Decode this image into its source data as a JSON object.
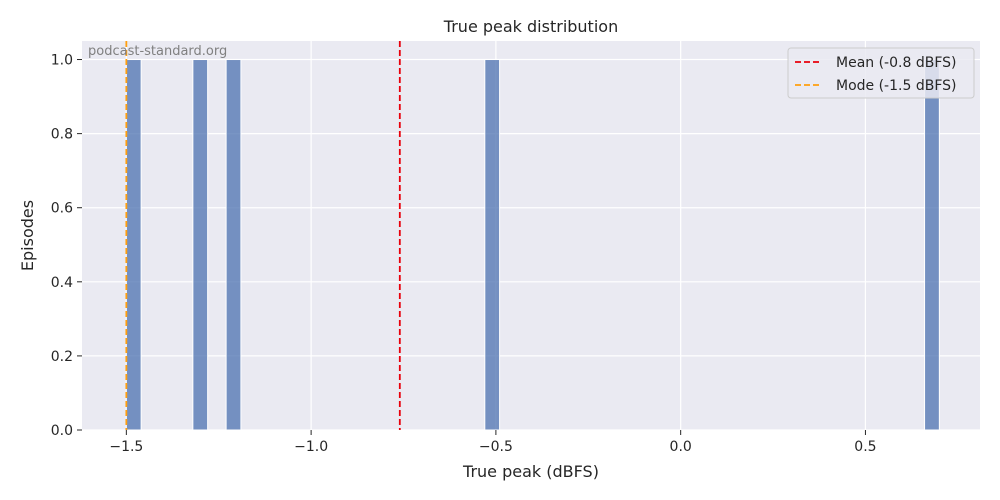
{
  "chart_data": {
    "type": "bar",
    "title": "True peak distribution",
    "xlabel": "True peak (dBFS)",
    "ylabel": "Episodes",
    "watermark": "podcast-standard.org",
    "xlim": [
      -1.62,
      0.81
    ],
    "ylim": [
      0,
      1.05
    ],
    "xticks": [
      -1.5,
      -1.0,
      -0.5,
      0.0,
      0.5
    ],
    "xtick_labels": [
      "−1.5",
      "−1.0",
      "−0.5",
      "0.0",
      "0.5"
    ],
    "yticks": [
      0.0,
      0.2,
      0.4,
      0.6,
      0.8,
      1.0
    ],
    "ytick_labels": [
      "0.0",
      "0.2",
      "0.4",
      "0.6",
      "0.8",
      "1.0"
    ],
    "bin_width": 0.04,
    "bars": [
      {
        "x_start": -1.5,
        "x_end": -1.46,
        "value": 1
      },
      {
        "x_start": -1.32,
        "x_end": -1.28,
        "value": 1
      },
      {
        "x_start": -1.23,
        "x_end": -1.19,
        "value": 1
      },
      {
        "x_start": -0.53,
        "x_end": -0.49,
        "value": 1
      },
      {
        "x_start": 0.66,
        "x_end": 0.7,
        "value": 1
      }
    ],
    "reference_lines": [
      {
        "label": "Mean (-0.8 dBFS)",
        "x": -0.76,
        "color": "#e8000b"
      },
      {
        "label": "Mode (-1.5 dBFS)",
        "x": -1.5,
        "color": "#ff9f0f"
      }
    ],
    "legend_position": "top-right",
    "grid": true,
    "colors": {
      "bar": "#4c72b0",
      "background": "#eaeaf2",
      "grid": "#ffffff"
    }
  }
}
